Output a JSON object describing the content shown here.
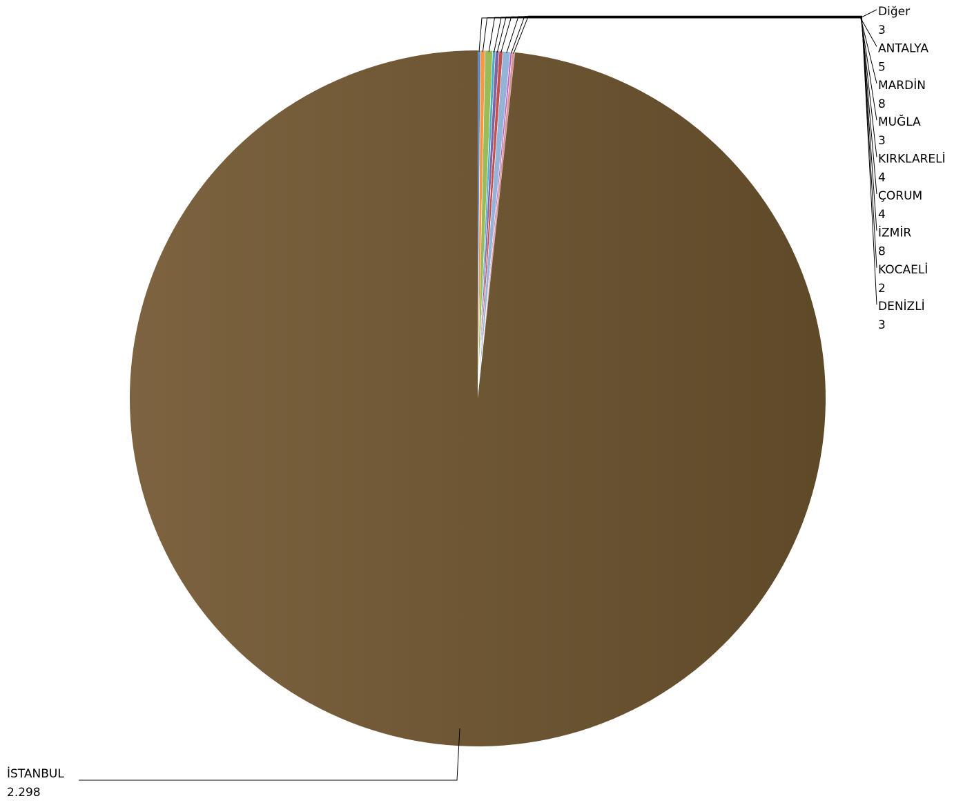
{
  "chart_data": {
    "type": "pie",
    "categories": [
      "Diğer",
      "ANTALYA",
      "MARDİN",
      "MUĞLA",
      "KIRKLARELİ",
      "ÇORUM",
      "İZMİR",
      "KOCAELİ",
      "DENİZLİ",
      "İSTANBUL"
    ],
    "values": [
      3,
      5,
      8,
      3,
      4,
      4,
      8,
      2,
      3,
      2298
    ],
    "value_labels": [
      "3",
      "5",
      "8",
      "3",
      "4",
      "4",
      "8",
      "2",
      "3",
      "2.298"
    ],
    "colors": [
      "#4f81bd",
      "#f79646",
      "#9bbb59",
      "#4bacc6",
      "#8064a2",
      "#c0504d",
      "#95b3d7",
      "#b35fc5",
      "#d99694",
      "#7a5f38"
    ],
    "main_gradient": [
      "#7d6340",
      "#5e4928"
    ],
    "title": "",
    "legend": "none",
    "labels_position": "outside-with-leaders"
  }
}
